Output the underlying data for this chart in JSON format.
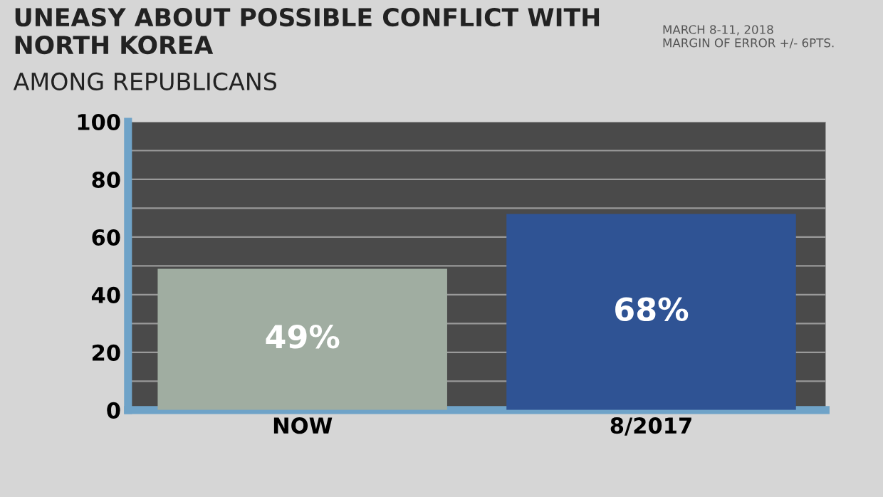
{
  "chart_data": {
    "type": "bar",
    "title": "UNEASY ABOUT POSSIBLE CONFLICT WITH\nNORTH KOREA",
    "subtitle": "AMONG REPUBLICANS",
    "annotations": [
      "MARCH 8-11, 2018\nMARGIN OF ERROR +/- 6PTS."
    ],
    "categories": [
      "NOW",
      "8/2017"
    ],
    "values": [
      49,
      68
    ],
    "colors": [
      "#a0ada1",
      "#2f5394"
    ],
    "value_labels": [
      "49%",
      "68%"
    ],
    "ylim": [
      0,
      100
    ],
    "yticks": [
      0,
      {
        "value": 10,
        "label": null
      },
      20,
      {
        "value": 30,
        "label": null
      },
      40,
      {
        "value": 50,
        "label": null
      },
      60,
      {
        "value": 70,
        "label": null
      },
      80,
      {
        "value": 90,
        "label": null
      },
      100
    ],
    "grid": "y"
  }
}
